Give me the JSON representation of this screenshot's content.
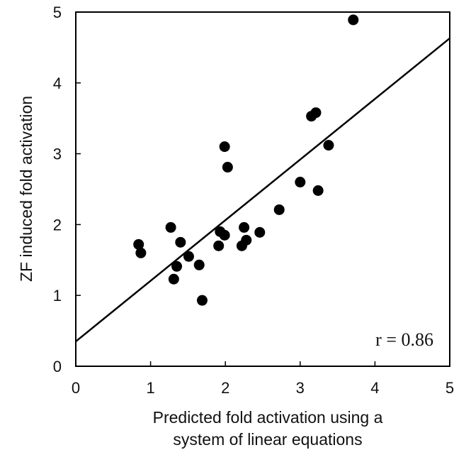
{
  "chart_data": {
    "type": "scatter",
    "title": "",
    "xlabel_lines": [
      "Predicted fold activation using a",
      "system of linear equations"
    ],
    "ylabel": "ZF induced fold activation",
    "xlim": [
      0,
      5
    ],
    "ylim": [
      0,
      5
    ],
    "xticks": [
      0,
      1,
      2,
      3,
      4,
      5
    ],
    "yticks": [
      0,
      1,
      2,
      3,
      4,
      5
    ],
    "grid": false,
    "legend": "none",
    "annotation": "r = 0.86",
    "trendline": {
      "x": [
        0,
        5
      ],
      "y": [
        0.35,
        4.63
      ]
    },
    "series": [
      {
        "points": [
          {
            "x": 0.84,
            "y": 1.72
          },
          {
            "x": 0.87,
            "y": 1.6
          },
          {
            "x": 1.27,
            "y": 1.96
          },
          {
            "x": 1.31,
            "y": 1.23
          },
          {
            "x": 1.35,
            "y": 1.41
          },
          {
            "x": 1.4,
            "y": 1.75
          },
          {
            "x": 1.51,
            "y": 1.55
          },
          {
            "x": 1.65,
            "y": 1.43
          },
          {
            "x": 1.69,
            "y": 0.93
          },
          {
            "x": 1.91,
            "y": 1.7
          },
          {
            "x": 1.93,
            "y": 1.9
          },
          {
            "x": 1.99,
            "y": 1.85
          },
          {
            "x": 1.99,
            "y": 3.1
          },
          {
            "x": 2.03,
            "y": 2.81
          },
          {
            "x": 2.22,
            "y": 1.7
          },
          {
            "x": 2.25,
            "y": 1.96
          },
          {
            "x": 2.28,
            "y": 1.78
          },
          {
            "x": 2.46,
            "y": 1.89
          },
          {
            "x": 2.72,
            "y": 2.21
          },
          {
            "x": 3.0,
            "y": 2.6
          },
          {
            "x": 3.15,
            "y": 3.53
          },
          {
            "x": 3.21,
            "y": 3.58
          },
          {
            "x": 3.24,
            "y": 2.48
          },
          {
            "x": 3.38,
            "y": 3.12
          },
          {
            "x": 3.71,
            "y": 4.89
          }
        ]
      }
    ]
  }
}
